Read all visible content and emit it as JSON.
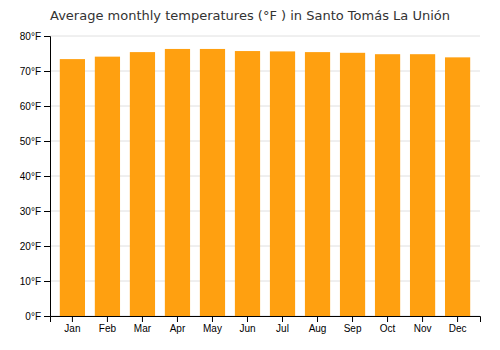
{
  "chart_data": {
    "type": "bar",
    "title": "Average monthly temperatures (°F ) in Santo Tomás La Unión",
    "categories": [
      "Jan",
      "Feb",
      "Mar",
      "Apr",
      "May",
      "Jun",
      "Jul",
      "Aug",
      "Sep",
      "Oct",
      "Nov",
      "Dec"
    ],
    "values": [
      73.4,
      74.1,
      75.4,
      76.3,
      76.3,
      75.7,
      75.6,
      75.4,
      75.2,
      74.8,
      74.8,
      73.9
    ],
    "color": "#FFA010",
    "ylim": [
      0,
      80
    ],
    "yticks": [
      {
        "value": 0,
        "label": "0°F"
      },
      {
        "value": 10,
        "label": "10°F"
      },
      {
        "value": 20,
        "label": "20°F"
      },
      {
        "value": 30,
        "label": "30°F"
      },
      {
        "value": 40,
        "label": "40°F"
      },
      {
        "value": 50,
        "label": "50°F"
      },
      {
        "value": 60,
        "label": "60°F"
      },
      {
        "value": 70,
        "label": "70°F"
      },
      {
        "value": 80,
        "label": "80°F"
      }
    ],
    "grid": true
  }
}
